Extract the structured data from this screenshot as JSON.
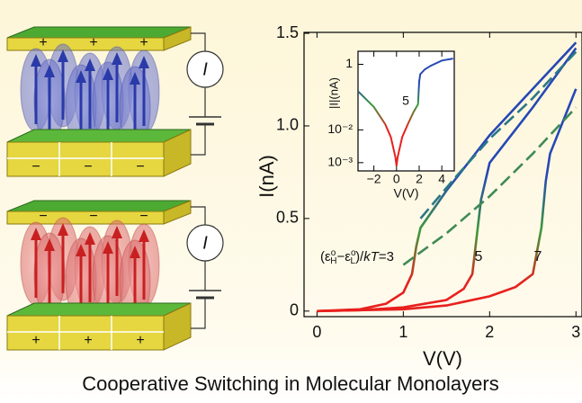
{
  "chart_data": [
    {
      "type": "line",
      "title": "Cooperative Switching in Molecular Monolayers",
      "x_label": "V(V)",
      "y_label": "I(nA)",
      "xlim": [
        -0.15,
        3.07
      ],
      "ylim": [
        -0.03,
        1.505
      ],
      "xticks": [
        0,
        1,
        2,
        3
      ],
      "yticks": [
        0,
        0.5,
        {
          "value": 1,
          "label": "1.0"
        },
        1.5
      ],
      "color_scale": [
        "#e8201e",
        "#3c9a3a",
        "#2648b4"
      ],
      "annotations": [
        [
          "(ε",
          "o",
          "H",
          "−ε",
          "o",
          "L",
          ")/",
          "kT",
          "=3"
        ],
        "5",
        "7"
      ],
      "series": [
        {
          "x": [
            0,
            0.5,
            0.8,
            1.0,
            1.1,
            1.15,
            1.2,
            1.5,
            2.0,
            2.5,
            3.0
          ],
          "values": [
            0,
            0.01,
            0.04,
            0.1,
            0.2,
            0.35,
            0.45,
            0.65,
            0.95,
            1.2,
            1.45
          ],
          "dashed": false
        },
        {
          "x": [
            0,
            0.5,
            1.0,
            1.5,
            1.7,
            1.8,
            1.85,
            1.9,
            2.0,
            2.5,
            3.0
          ],
          "values": [
            0,
            0.005,
            0.02,
            0.06,
            0.12,
            0.2,
            0.4,
            0.6,
            0.8,
            1.1,
            1.42
          ],
          "dashed": false
        },
        {
          "x": [
            0,
            1.0,
            1.5,
            2.0,
            2.3,
            2.5,
            2.6,
            2.65,
            2.7,
            3.0
          ],
          "values": [
            0,
            0.01,
            0.03,
            0.08,
            0.13,
            0.2,
            0.45,
            0.7,
            0.85,
            1.2
          ],
          "dashed": false
        },
        {
          "x": [
            1.2,
            1.6,
            2.0,
            2.5,
            3.0
          ],
          "values": [
            0.5,
            0.72,
            0.93,
            1.15,
            1.4
          ],
          "dashed": true,
          "color": "#2a7888"
        },
        {
          "x": [
            1.0,
            1.5,
            2.0,
            2.5,
            3.0
          ],
          "values": [
            0.25,
            0.42,
            0.62,
            0.85,
            1.1
          ],
          "dashed": true,
          "color": "#3f8a55"
        }
      ]
    },
    {
      "type": "line",
      "log_y": true,
      "x_label": "V(V)",
      "y_label": "|I|(nA)",
      "xlim": [
        -3.4,
        5.1
      ],
      "ylim": [
        0.00056,
        2.5
      ],
      "xticks": [
        {
          "value": -2,
          "label": "−2"
        },
        0,
        2,
        4
      ],
      "yticks": [
        1,
        {
          "value": 0.01,
          "label": "10⁻²"
        },
        {
          "value": 0.001,
          "label": "10⁻³"
        }
      ],
      "color_scale": [
        "#e8201e",
        "#3c9a3a",
        "#2648b4"
      ],
      "annotations": [
        "5"
      ],
      "series": [
        {
          "x": [
            -3.4,
            -2,
            -1,
            -0.5,
            -0.1,
            0,
            0.1,
            0.5,
            1,
            1.5,
            1.9,
            2,
            2.1,
            2.5,
            3,
            4,
            5
          ],
          "values": [
            0.15,
            0.05,
            0.015,
            0.006,
            0.0015,
            0.0008,
            0.0015,
            0.006,
            0.015,
            0.035,
            0.06,
            0.3,
            0.5,
            0.7,
            0.9,
            1.3,
            1.5
          ],
          "dashed": false
        }
      ]
    }
  ],
  "diagram": {
    "panels": [
      {
        "top_signs": [
          "+",
          "+",
          "+"
        ],
        "bottom_signs": [
          "−",
          "−",
          "−"
        ],
        "meter": "I"
      },
      {
        "top_signs": [
          "−",
          "−",
          "−"
        ],
        "bottom_signs": [
          "+",
          "+",
          "+"
        ],
        "meter": "I"
      }
    ]
  }
}
